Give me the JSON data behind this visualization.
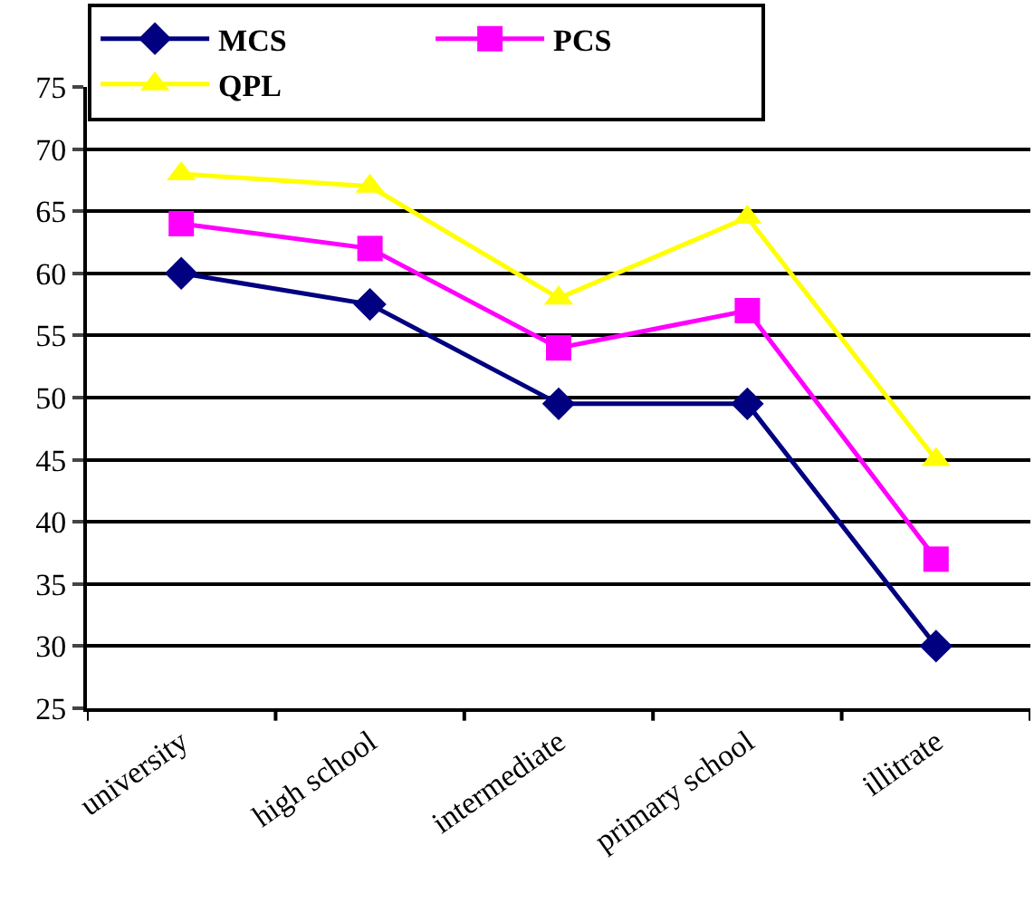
{
  "chart_data": {
    "type": "line",
    "categories": [
      "university",
      "high school",
      "intermediate",
      "primary school",
      "illitrate"
    ],
    "series": [
      {
        "name": "MCS",
        "color": "#000080",
        "marker": "diamond",
        "values": [
          60,
          57.5,
          49.5,
          49.5,
          30
        ]
      },
      {
        "name": "PCS",
        "color": "#ff00ff",
        "marker": "square",
        "values": [
          64,
          62,
          54,
          57,
          37
        ]
      },
      {
        "name": "QPL",
        "color": "#ffff00",
        "marker": "triangle",
        "values": [
          68,
          67,
          58,
          64.5,
          45
        ]
      }
    ],
    "ylim": [
      25,
      75
    ],
    "yticks": [
      25,
      30,
      35,
      40,
      45,
      50,
      55,
      60,
      65,
      70,
      75
    ],
    "grid": "y",
    "legend": "top",
    "line_style": "solid"
  }
}
